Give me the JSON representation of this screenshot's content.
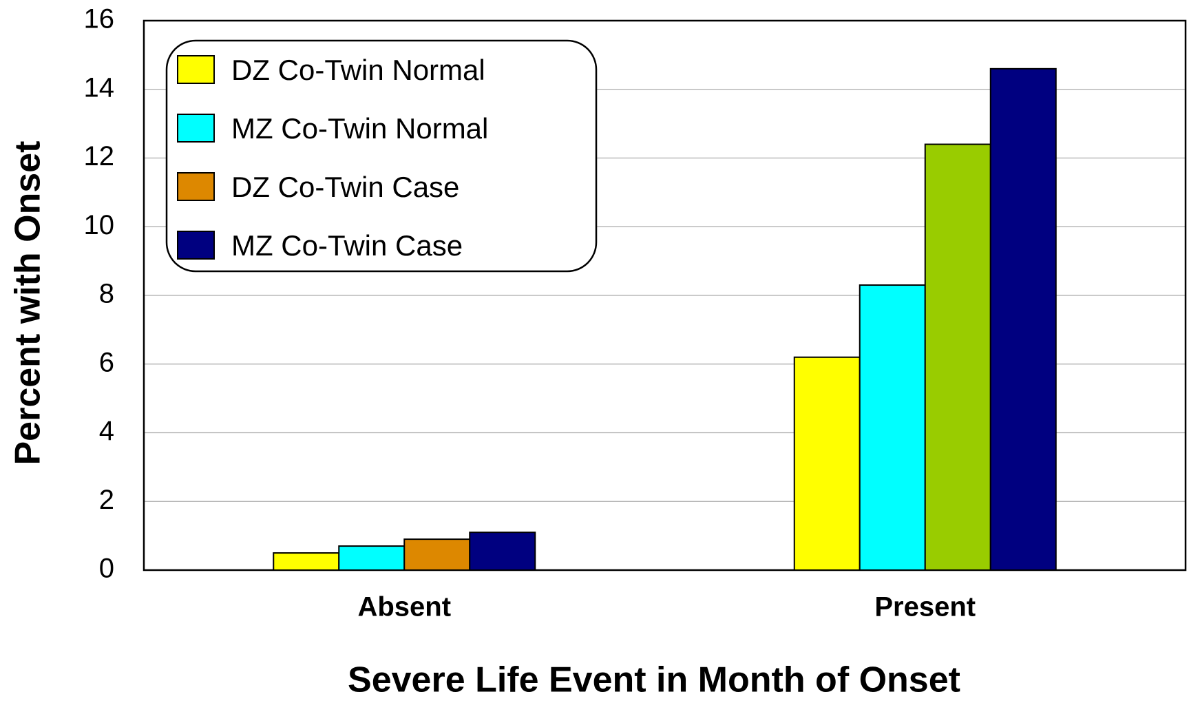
{
  "chart_data": {
    "type": "bar",
    "xlabel": "Severe Life Event in Month of Onset",
    "ylabel": "Percent with Onset",
    "categories": [
      "Absent",
      "Present"
    ],
    "series": [
      {
        "name": "DZ Co-Twin Normal",
        "color": "#ffff00",
        "values": [
          0.5,
          6.2
        ]
      },
      {
        "name": "MZ Co-Twin Normal",
        "color": "#00ffff",
        "values": [
          0.7,
          8.3
        ]
      },
      {
        "name": "DZ Co-Twin Case",
        "color": "#dd8800",
        "bar_colors": [
          "#dd8800",
          "#99cc00"
        ],
        "values": [
          0.9,
          12.4
        ]
      },
      {
        "name": "MZ Co-Twin Case",
        "color": "#000080",
        "values": [
          1.1,
          14.6
        ]
      }
    ],
    "ylim": [
      0,
      16
    ],
    "yticks": [
      0,
      2,
      4,
      6,
      8,
      10,
      12,
      14,
      16
    ],
    "grid": true,
    "legend": "upper left"
  }
}
